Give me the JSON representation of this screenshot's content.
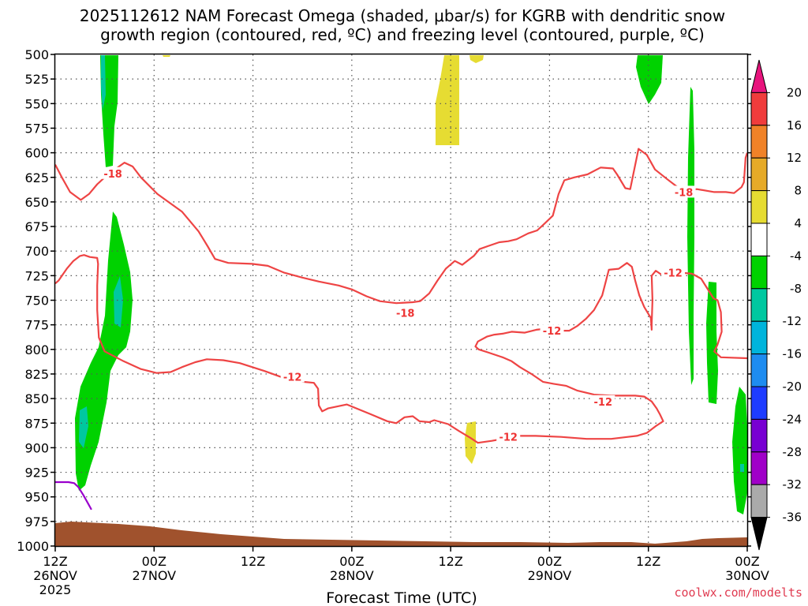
{
  "chart_data": {
    "type": "time-height contour",
    "title_line1": "2025112612 NAM Forecast Omega (shaded, μbar/s) for KGRB with dendritic snow",
    "title_line2": "growth region (contoured, red, ºC) and freezing level (contoured, purple, ºC)",
    "xlabel": "Forecast Time (UTC)",
    "watermark": "coolwx.com/modelts",
    "xlim_hours": [
      0,
      84
    ],
    "ylim_hpa": [
      500,
      1000
    ],
    "y_ticks": [
      500,
      525,
      550,
      575,
      600,
      625,
      650,
      675,
      700,
      725,
      750,
      775,
      800,
      825,
      850,
      875,
      900,
      925,
      950,
      975,
      1000
    ],
    "y_tick_labels": [
      "500",
      "525",
      "550",
      "575",
      "600",
      "625",
      "650",
      "675",
      "700",
      "725",
      "750",
      "775",
      "800",
      "825",
      "850",
      "875",
      "900",
      "925",
      "950",
      "975",
      "1000"
    ],
    "x_ticks": [
      {
        "hour": 0,
        "line1": "12Z",
        "line2": "26NOV",
        "line3": "2025"
      },
      {
        "hour": 12,
        "line1": "00Z",
        "line2": "27NOV",
        "line3": ""
      },
      {
        "hour": 24,
        "line1": "12Z",
        "line2": "",
        "line3": ""
      },
      {
        "hour": 36,
        "line1": "00Z",
        "line2": "28NOV",
        "line3": ""
      },
      {
        "hour": 48,
        "line1": "12Z",
        "line2": "",
        "line3": ""
      },
      {
        "hour": 60,
        "line1": "00Z",
        "line2": "29NOV",
        "line3": ""
      },
      {
        "hour": 72,
        "line1": "12Z",
        "line2": "",
        "line3": ""
      },
      {
        "hour": 84,
        "line1": "00Z",
        "line2": "30NOV",
        "line3": ""
      }
    ],
    "colorbar": {
      "levels": [
        "20",
        "16",
        "12",
        "8",
        "4",
        "-4",
        "-8",
        "-12",
        "-16",
        "-20",
        "-24",
        "-28",
        "-32",
        "-36"
      ],
      "colors": [
        "#e8147d",
        "#f03c3c",
        "#f08228",
        "#e6aa28",
        "#e6dc32",
        "#ffffff",
        "#00d200",
        "#00c8a0",
        "#00b4dc",
        "#1e8cf0",
        "#1e3cff",
        "#7800d2",
        "#a000c8",
        "#aaaaaa",
        "#000000"
      ]
    },
    "contour_labels": [
      {
        "text": "-18",
        "hour": 7.0,
        "hpa": 621
      },
      {
        "text": "-18",
        "hour": 42.5,
        "hpa": 763
      },
      {
        "text": "-18",
        "hour": 76.3,
        "hpa": 640
      },
      {
        "text": "-12",
        "hour": 28.8,
        "hpa": 828
      },
      {
        "text": "-12",
        "hour": 60.3,
        "hpa": 781
      },
      {
        "text": "-12",
        "hour": 66.5,
        "hpa": 853
      },
      {
        "text": "-12",
        "hour": 55.0,
        "hpa": 889
      },
      {
        "text": "-12",
        "hour": 75.0,
        "hpa": 722
      }
    ],
    "series": [
      {
        "name": "dgz-18-upper",
        "color": "#ee4444",
        "points": [
          [
            0,
            612
          ],
          [
            0.8,
            625
          ],
          [
            1.8,
            640
          ],
          [
            3.1,
            648
          ],
          [
            4.1,
            642
          ],
          [
            5.1,
            632
          ],
          [
            6.4,
            622
          ],
          [
            8.4,
            610
          ],
          [
            9.4,
            614
          ],
          [
            10.4,
            625
          ],
          [
            12.4,
            642
          ],
          [
            15.4,
            660
          ],
          [
            17.4,
            680
          ],
          [
            18.5,
            695
          ],
          [
            19.4,
            708
          ],
          [
            21.0,
            712
          ],
          [
            23.9,
            713
          ],
          [
            25.8,
            715
          ],
          [
            27.8,
            722
          ],
          [
            30.0,
            727
          ],
          [
            32.0,
            731
          ],
          [
            34.4,
            735
          ],
          [
            36.0,
            739
          ],
          [
            37.8,
            746
          ],
          [
            39.4,
            751
          ],
          [
            41.4,
            753
          ],
          [
            43.4,
            752
          ],
          [
            44.3,
            751
          ],
          [
            45.4,
            743
          ],
          [
            46.4,
            730
          ],
          [
            47.4,
            718
          ],
          [
            48.5,
            710
          ],
          [
            49.4,
            714
          ],
          [
            50.8,
            705
          ],
          [
            51.5,
            698
          ],
          [
            52.5,
            695
          ],
          [
            53.9,
            691
          ],
          [
            55.0,
            690
          ],
          [
            56.0,
            688
          ],
          [
            57.4,
            682
          ],
          [
            58.5,
            679
          ],
          [
            59.4,
            672
          ],
          [
            60.4,
            664
          ],
          [
            61.1,
            642
          ],
          [
            61.8,
            628
          ],
          [
            63.0,
            625
          ],
          [
            64.6,
            622
          ],
          [
            66.2,
            615
          ],
          [
            67.7,
            616
          ],
          [
            68.2,
            622
          ],
          [
            69.2,
            636
          ],
          [
            69.8,
            637
          ],
          [
            70.8,
            596
          ],
          [
            71.8,
            602
          ],
          [
            72.8,
            617
          ],
          [
            74.3,
            627
          ],
          [
            75.4,
            634
          ],
          [
            76.4,
            638
          ],
          [
            77.9,
            637
          ],
          [
            80.0,
            640
          ],
          [
            81.4,
            640
          ],
          [
            82.4,
            641
          ],
          [
            83.3,
            635
          ],
          [
            83.6,
            630
          ],
          [
            83.8,
            605
          ],
          [
            84,
            600
          ]
        ]
      },
      {
        "name": "dgz-12-left",
        "color": "#ee4444",
        "points": [
          [
            0,
            733
          ],
          [
            0.4,
            730
          ],
          [
            1.4,
            718
          ],
          [
            2.2,
            710
          ],
          [
            3.0,
            705
          ],
          [
            3.5,
            704
          ],
          [
            4.2,
            706
          ],
          [
            5.1,
            707
          ],
          [
            5.2,
            713
          ],
          [
            5.1,
            735
          ],
          [
            5.1,
            760
          ],
          [
            5.3,
            788
          ],
          [
            6.0,
            802
          ],
          [
            8.3,
            812
          ],
          [
            10.4,
            820
          ],
          [
            12.3,
            824
          ],
          [
            14.0,
            823
          ],
          [
            15.4,
            818
          ],
          [
            17.0,
            813
          ],
          [
            18.4,
            810
          ],
          [
            20.4,
            811
          ],
          [
            22.4,
            814
          ],
          [
            25.4,
            822
          ],
          [
            27.4,
            828
          ],
          [
            28.5,
            830
          ],
          [
            30.1,
            833
          ],
          [
            31.4,
            834
          ],
          [
            31.9,
            840
          ],
          [
            32.0,
            857
          ],
          [
            32.4,
            863
          ],
          [
            33.1,
            860
          ],
          [
            35.4,
            856
          ],
          [
            38.3,
            866
          ],
          [
            40.3,
            873
          ],
          [
            41.4,
            875
          ],
          [
            42.4,
            869
          ],
          [
            43.4,
            868
          ],
          [
            44.2,
            873
          ],
          [
            45.4,
            874
          ],
          [
            46.0,
            872
          ],
          [
            47.7,
            876
          ],
          [
            49.0,
            883
          ],
          [
            50.4,
            890
          ],
          [
            51.3,
            895
          ],
          [
            53.0,
            893
          ],
          [
            54.3,
            891
          ],
          [
            55.4,
            888
          ],
          [
            58.3,
            888
          ],
          [
            61.4,
            889
          ],
          [
            64.5,
            891
          ],
          [
            67.5,
            891
          ],
          [
            69.5,
            889
          ],
          [
            70.6,
            888
          ],
          [
            71.8,
            885
          ],
          [
            72.9,
            878
          ],
          [
            73.8,
            873
          ],
          [
            73.4,
            866
          ],
          [
            73.0,
            860
          ],
          [
            72.4,
            853
          ],
          [
            71.5,
            848
          ],
          [
            70.4,
            847
          ],
          [
            67.5,
            847
          ],
          [
            65.4,
            846
          ],
          [
            63.4,
            842
          ],
          [
            62.0,
            837
          ],
          [
            60.5,
            835
          ],
          [
            59.2,
            833
          ],
          [
            57.8,
            825
          ],
          [
            56.4,
            818
          ],
          [
            55.4,
            812
          ],
          [
            54.3,
            808
          ],
          [
            52.5,
            803
          ],
          [
            51.4,
            800
          ],
          [
            51.0,
            797
          ],
          [
            51.3,
            792
          ],
          [
            52.4,
            787
          ],
          [
            53.3,
            785
          ],
          [
            54.3,
            784
          ],
          [
            55.4,
            782
          ],
          [
            57.0,
            783
          ],
          [
            58.4,
            780
          ],
          [
            59.5,
            779
          ],
          [
            60.6,
            781
          ],
          [
            62.4,
            781
          ],
          [
            63.4,
            776
          ],
          [
            64.4,
            769
          ],
          [
            65.4,
            760
          ],
          [
            66.4,
            745
          ],
          [
            67.2,
            719
          ],
          [
            68.4,
            718
          ],
          [
            69.4,
            712
          ],
          [
            70.0,
            716
          ],
          [
            70.4,
            730
          ],
          [
            70.9,
            745
          ],
          [
            71.5,
            757
          ],
          [
            72.3,
            768
          ],
          [
            72.4,
            780
          ],
          [
            72.4,
            774
          ],
          [
            72.5,
            750
          ],
          [
            72.4,
            725
          ],
          [
            72.9,
            720
          ],
          [
            73.6,
            724
          ],
          [
            74.4,
            722
          ],
          [
            76.0,
            722
          ],
          [
            77.3,
            723
          ],
          [
            78.4,
            728
          ],
          [
            79.3,
            740
          ],
          [
            79.9,
            748
          ],
          [
            80.4,
            750
          ],
          [
            80.8,
            762
          ],
          [
            80.9,
            782
          ],
          [
            80.4,
            795
          ],
          [
            80.0,
            802
          ],
          [
            80.8,
            808
          ],
          [
            84,
            809
          ]
        ]
      },
      {
        "name": "freezing-level",
        "color": "#9900cc",
        "points": [
          [
            0,
            935
          ],
          [
            1.6,
            935
          ],
          [
            2.3,
            936
          ],
          [
            2.8,
            940
          ],
          [
            3.4,
            948
          ],
          [
            4.0,
            957
          ],
          [
            4.4,
            963
          ]
        ]
      }
    ]
  }
}
